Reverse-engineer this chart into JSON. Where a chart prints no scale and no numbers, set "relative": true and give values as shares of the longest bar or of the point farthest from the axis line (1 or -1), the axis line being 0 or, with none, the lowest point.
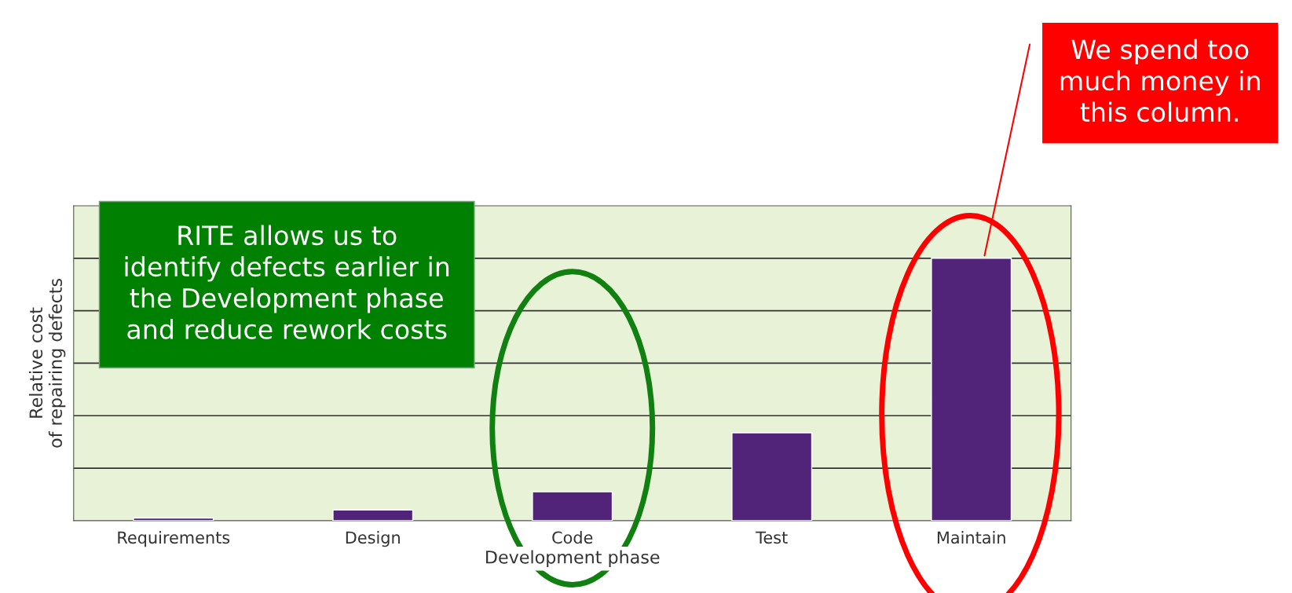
{
  "chart_data": {
    "type": "bar",
    "relative": true,
    "xlabel": "Development phase",
    "ylabel": "Relative cost\nof repairing defects",
    "categories": [
      "Requirements",
      "Design",
      "Code",
      "Test",
      "Maintain"
    ],
    "values": [
      0.01,
      0.041,
      0.11,
      0.335,
      1
    ],
    "color": "#51247a",
    "grid": "y",
    "annotations": [
      "RITE allows us to\nidentify defects earlier in\nthe Development phase\nand reduce rework costs",
      "We spend too\nmuch money in\nthis column."
    ]
  }
}
